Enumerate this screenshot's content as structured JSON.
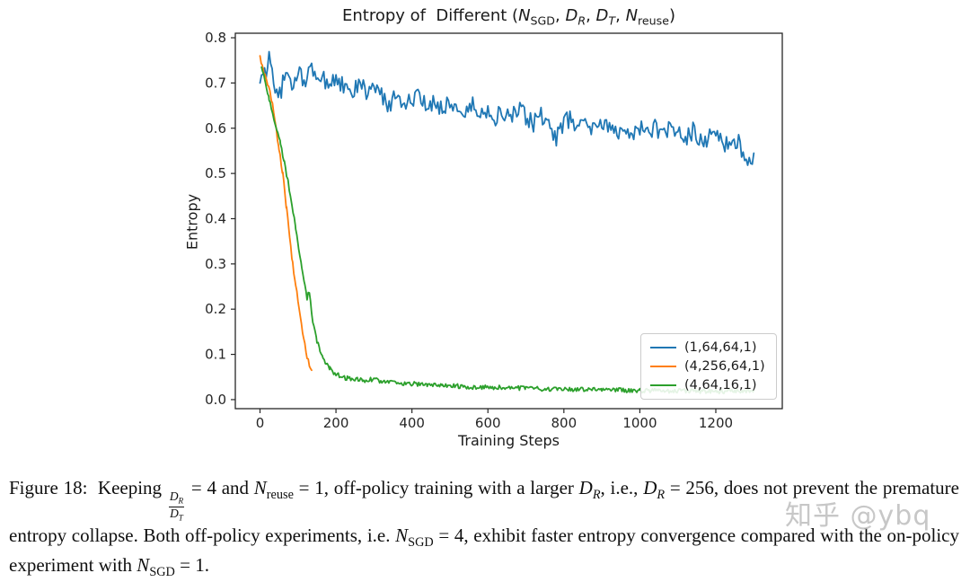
{
  "figure": {
    "title_html": "Entropy of  Different (<i>N</i><sub>SGD</sub>, <i>D<sub>R</sub></i>, <i>D<sub>T</sub></i>, <i>N</i><sub>reuse</sub>)",
    "xlabel": "Training Steps",
    "ylabel": "Entropy"
  },
  "chart_data": {
    "type": "line",
    "title": "Entropy of Different (N_SGD, D_R, D_T, N_reuse)",
    "xlabel": "Training Steps",
    "ylabel": "Entropy",
    "xlim": [
      -65,
      1375
    ],
    "ylim": [
      -0.02,
      0.81
    ],
    "xticks": [
      0,
      200,
      400,
      600,
      800,
      1000,
      1200
    ],
    "yticks": [
      0.0,
      0.1,
      0.2,
      0.3,
      0.4,
      0.5,
      0.6,
      0.7,
      0.8
    ],
    "grid": false,
    "legend_position": "lower right",
    "series": [
      {
        "name": "(1,64,64,1)",
        "color": "#1f77b4",
        "noise": 0.02,
        "sample_interval": 4,
        "anchors": [
          [
            0,
            0.7
          ],
          [
            8,
            0.73
          ],
          [
            16,
            0.71
          ],
          [
            24,
            0.77
          ],
          [
            32,
            0.73
          ],
          [
            40,
            0.69
          ],
          [
            48,
            0.66
          ],
          [
            60,
            0.7
          ],
          [
            72,
            0.72
          ],
          [
            84,
            0.69
          ],
          [
            100,
            0.72
          ],
          [
            120,
            0.71
          ],
          [
            140,
            0.73
          ],
          [
            160,
            0.71
          ],
          [
            180,
            0.7
          ],
          [
            200,
            0.71
          ],
          [
            220,
            0.69
          ],
          [
            240,
            0.67
          ],
          [
            260,
            0.7
          ],
          [
            280,
            0.68
          ],
          [
            300,
            0.69
          ],
          [
            320,
            0.67
          ],
          [
            340,
            0.65
          ],
          [
            360,
            0.68
          ],
          [
            380,
            0.655
          ],
          [
            400,
            0.66
          ],
          [
            420,
            0.67
          ],
          [
            440,
            0.64
          ],
          [
            460,
            0.66
          ],
          [
            480,
            0.645
          ],
          [
            500,
            0.66
          ],
          [
            520,
            0.64
          ],
          [
            540,
            0.635
          ],
          [
            560,
            0.65
          ],
          [
            580,
            0.63
          ],
          [
            600,
            0.64
          ],
          [
            620,
            0.625
          ],
          [
            640,
            0.635
          ],
          [
            660,
            0.62
          ],
          [
            680,
            0.64
          ],
          [
            700,
            0.625
          ],
          [
            720,
            0.61
          ],
          [
            740,
            0.63
          ],
          [
            760,
            0.6
          ],
          [
            780,
            0.58
          ],
          [
            800,
            0.615
          ],
          [
            820,
            0.62
          ],
          [
            840,
            0.6
          ],
          [
            860,
            0.62
          ],
          [
            880,
            0.595
          ],
          [
            900,
            0.61
          ],
          [
            920,
            0.6
          ],
          [
            940,
            0.59
          ],
          [
            960,
            0.61
          ],
          [
            980,
            0.585
          ],
          [
            1000,
            0.6
          ],
          [
            1020,
            0.59
          ],
          [
            1040,
            0.605
          ],
          [
            1060,
            0.58
          ],
          [
            1080,
            0.6
          ],
          [
            1100,
            0.59
          ],
          [
            1120,
            0.575
          ],
          [
            1140,
            0.595
          ],
          [
            1160,
            0.57
          ],
          [
            1180,
            0.58
          ],
          [
            1200,
            0.59
          ],
          [
            1220,
            0.57
          ],
          [
            1240,
            0.55
          ],
          [
            1260,
            0.575
          ],
          [
            1280,
            0.52
          ],
          [
            1300,
            0.545
          ]
        ]
      },
      {
        "name": "(4,256,64,1)",
        "color": "#ff7f0e",
        "noise": 0.006,
        "sample_interval": 3,
        "anchors": [
          [
            0,
            0.76
          ],
          [
            10,
            0.72
          ],
          [
            20,
            0.7
          ],
          [
            30,
            0.665
          ],
          [
            40,
            0.615
          ],
          [
            50,
            0.555
          ],
          [
            60,
            0.5
          ],
          [
            70,
            0.42
          ],
          [
            78,
            0.36
          ],
          [
            86,
            0.3
          ],
          [
            94,
            0.25
          ],
          [
            100,
            0.22
          ],
          [
            106,
            0.185
          ],
          [
            112,
            0.15
          ],
          [
            118,
            0.12
          ],
          [
            124,
            0.095
          ],
          [
            130,
            0.075
          ],
          [
            136,
            0.065
          ]
        ]
      },
      {
        "name": "(4,64,16,1)",
        "color": "#2ca02c",
        "noise": 0.005,
        "sample_interval": 3,
        "anchors": [
          [
            4,
            0.735
          ],
          [
            14,
            0.7
          ],
          [
            24,
            0.665
          ],
          [
            34,
            0.63
          ],
          [
            44,
            0.6
          ],
          [
            54,
            0.565
          ],
          [
            64,
            0.525
          ],
          [
            74,
            0.48
          ],
          [
            84,
            0.43
          ],
          [
            94,
            0.38
          ],
          [
            102,
            0.335
          ],
          [
            110,
            0.29
          ],
          [
            118,
            0.25
          ],
          [
            124,
            0.225
          ],
          [
            130,
            0.24
          ],
          [
            136,
            0.19
          ],
          [
            142,
            0.16
          ],
          [
            150,
            0.13
          ],
          [
            158,
            0.11
          ],
          [
            166,
            0.095
          ],
          [
            174,
            0.08
          ],
          [
            184,
            0.07
          ],
          [
            194,
            0.06
          ],
          [
            210,
            0.052
          ],
          [
            230,
            0.047
          ],
          [
            250,
            0.045
          ],
          [
            270,
            0.042
          ],
          [
            300,
            0.045
          ],
          [
            330,
            0.038
          ],
          [
            360,
            0.036
          ],
          [
            400,
            0.035
          ],
          [
            440,
            0.033
          ],
          [
            480,
            0.03
          ],
          [
            520,
            0.03
          ],
          [
            560,
            0.028
          ],
          [
            600,
            0.028
          ],
          [
            650,
            0.026
          ],
          [
            700,
            0.025
          ],
          [
            750,
            0.024
          ],
          [
            800,
            0.023
          ],
          [
            850,
            0.023
          ],
          [
            900,
            0.022
          ],
          [
            950,
            0.021
          ],
          [
            1000,
            0.02
          ],
          [
            1050,
            0.02
          ],
          [
            1100,
            0.019
          ],
          [
            1150,
            0.019
          ],
          [
            1200,
            0.018
          ],
          [
            1250,
            0.019
          ],
          [
            1300,
            0.021
          ]
        ]
      }
    ]
  },
  "caption": {
    "html": "Figure 18:&nbsp; Keeping <span class=\"frac\"><span class=\"num\"><i>D<sub>R</sub></i></span><span class=\"den\"><i>D<sub>T</sub></i></span></span> = 4 and <i>N</i><sub>reuse</sub> = 1, off-policy training with a larger <i>D<sub>R</sub></i>, i.e., <i>D<sub>R</sub></i> = 256, does not prevent the premature entropy collapse. Both off-policy experiments, i.e. <i>N</i><sub>SGD</sub> = 4, exhibit faster entropy convergence compared with the on-policy experiment with <i>N</i><sub>SGD</sub> = 1."
  },
  "watermark": {
    "text": "知乎 @ybq"
  }
}
